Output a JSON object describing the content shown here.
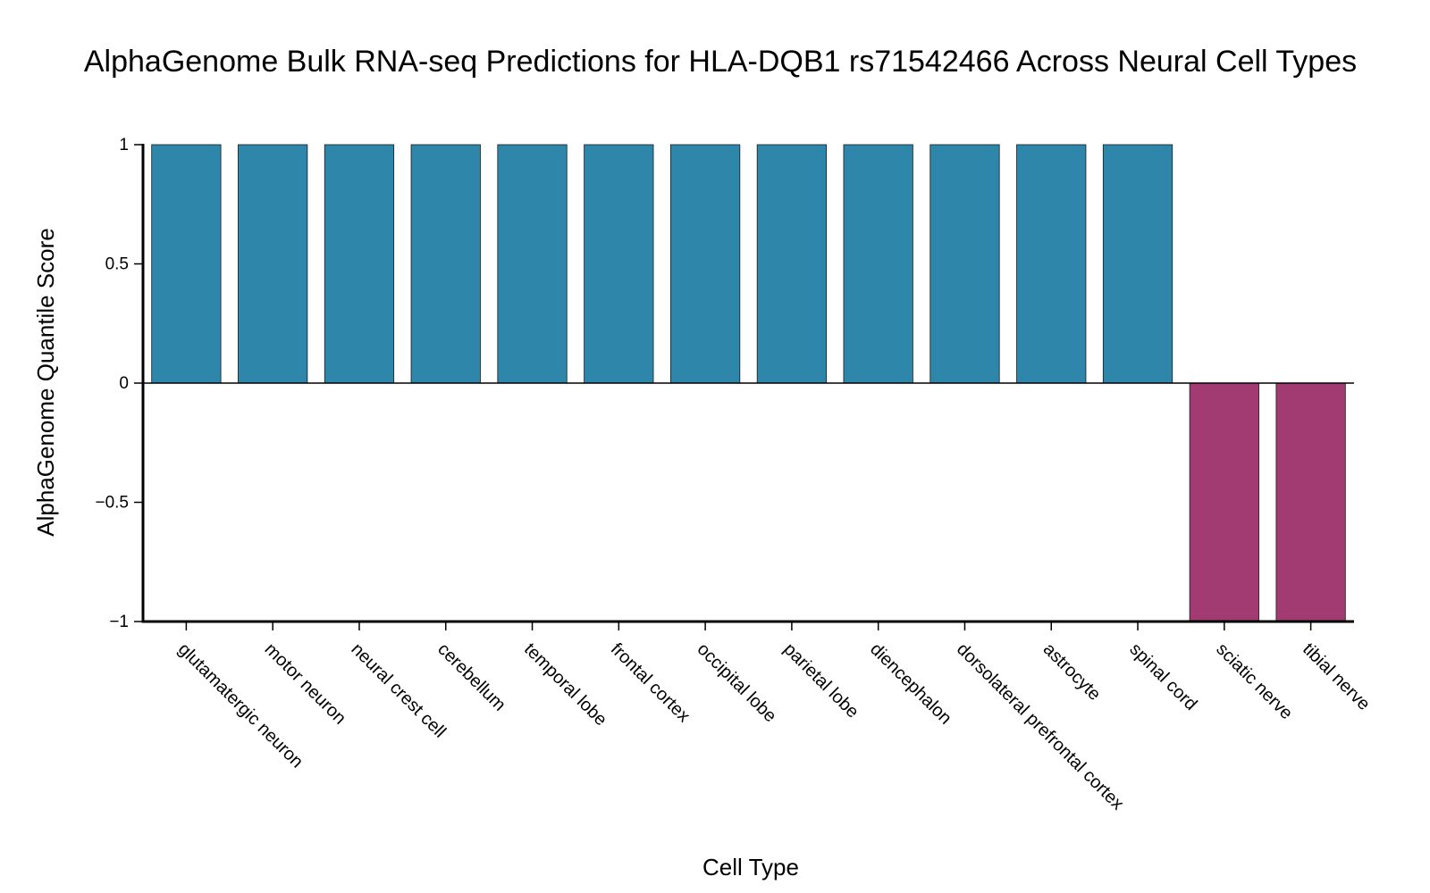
{
  "chart_data": {
    "type": "bar",
    "title": "AlphaGenome Bulk RNA-seq Predictions for HLA-DQB1 rs71542466 Across Neural Cell Types",
    "xlabel": "Cell Type",
    "ylabel": "AlphaGenome Quantile Score",
    "ylim": [
      -1,
      1
    ],
    "yticks": [
      1,
      0.5,
      0,
      -0.5,
      -1
    ],
    "ytick_labels": [
      "1",
      "0.5",
      "0",
      "−0.5",
      "−1"
    ],
    "categories": [
      "glutamatergic neuron",
      "motor neuron",
      "neural crest cell",
      "cerebellum",
      "temporal lobe",
      "frontal cortex",
      "occipital lobe",
      "parietal lobe",
      "diencephalon",
      "dorsolateral prefrontal cortex",
      "astrocyte",
      "spinal cord",
      "sciatic nerve",
      "tibial nerve"
    ],
    "values": [
      1,
      1,
      1,
      1,
      1,
      1,
      1,
      1,
      1,
      1,
      1,
      1,
      -1,
      -1
    ],
    "colors": {
      "positive": "#2E86AB",
      "negative": "#A23B72",
      "axis": "#000000"
    },
    "grid": false,
    "legend": "none"
  }
}
